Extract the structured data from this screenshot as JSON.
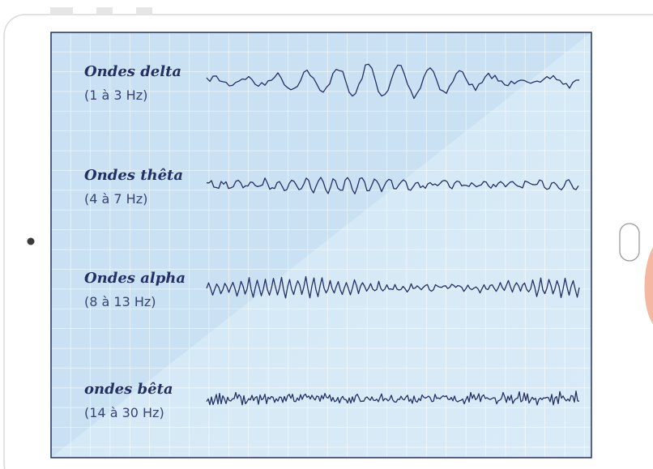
{
  "waves": [
    {
      "name": "Ondes delta",
      "range": "(1 à 3 Hz)"
    },
    {
      "name": "Ondes thêta",
      "range": "(4 à 7 Hz)"
    },
    {
      "name": "Ondes alpha",
      "range": "(8 à 13 Hz)"
    },
    {
      "name": "ondes bêta",
      "range": "(14 à 30 Hz)"
    }
  ]
}
